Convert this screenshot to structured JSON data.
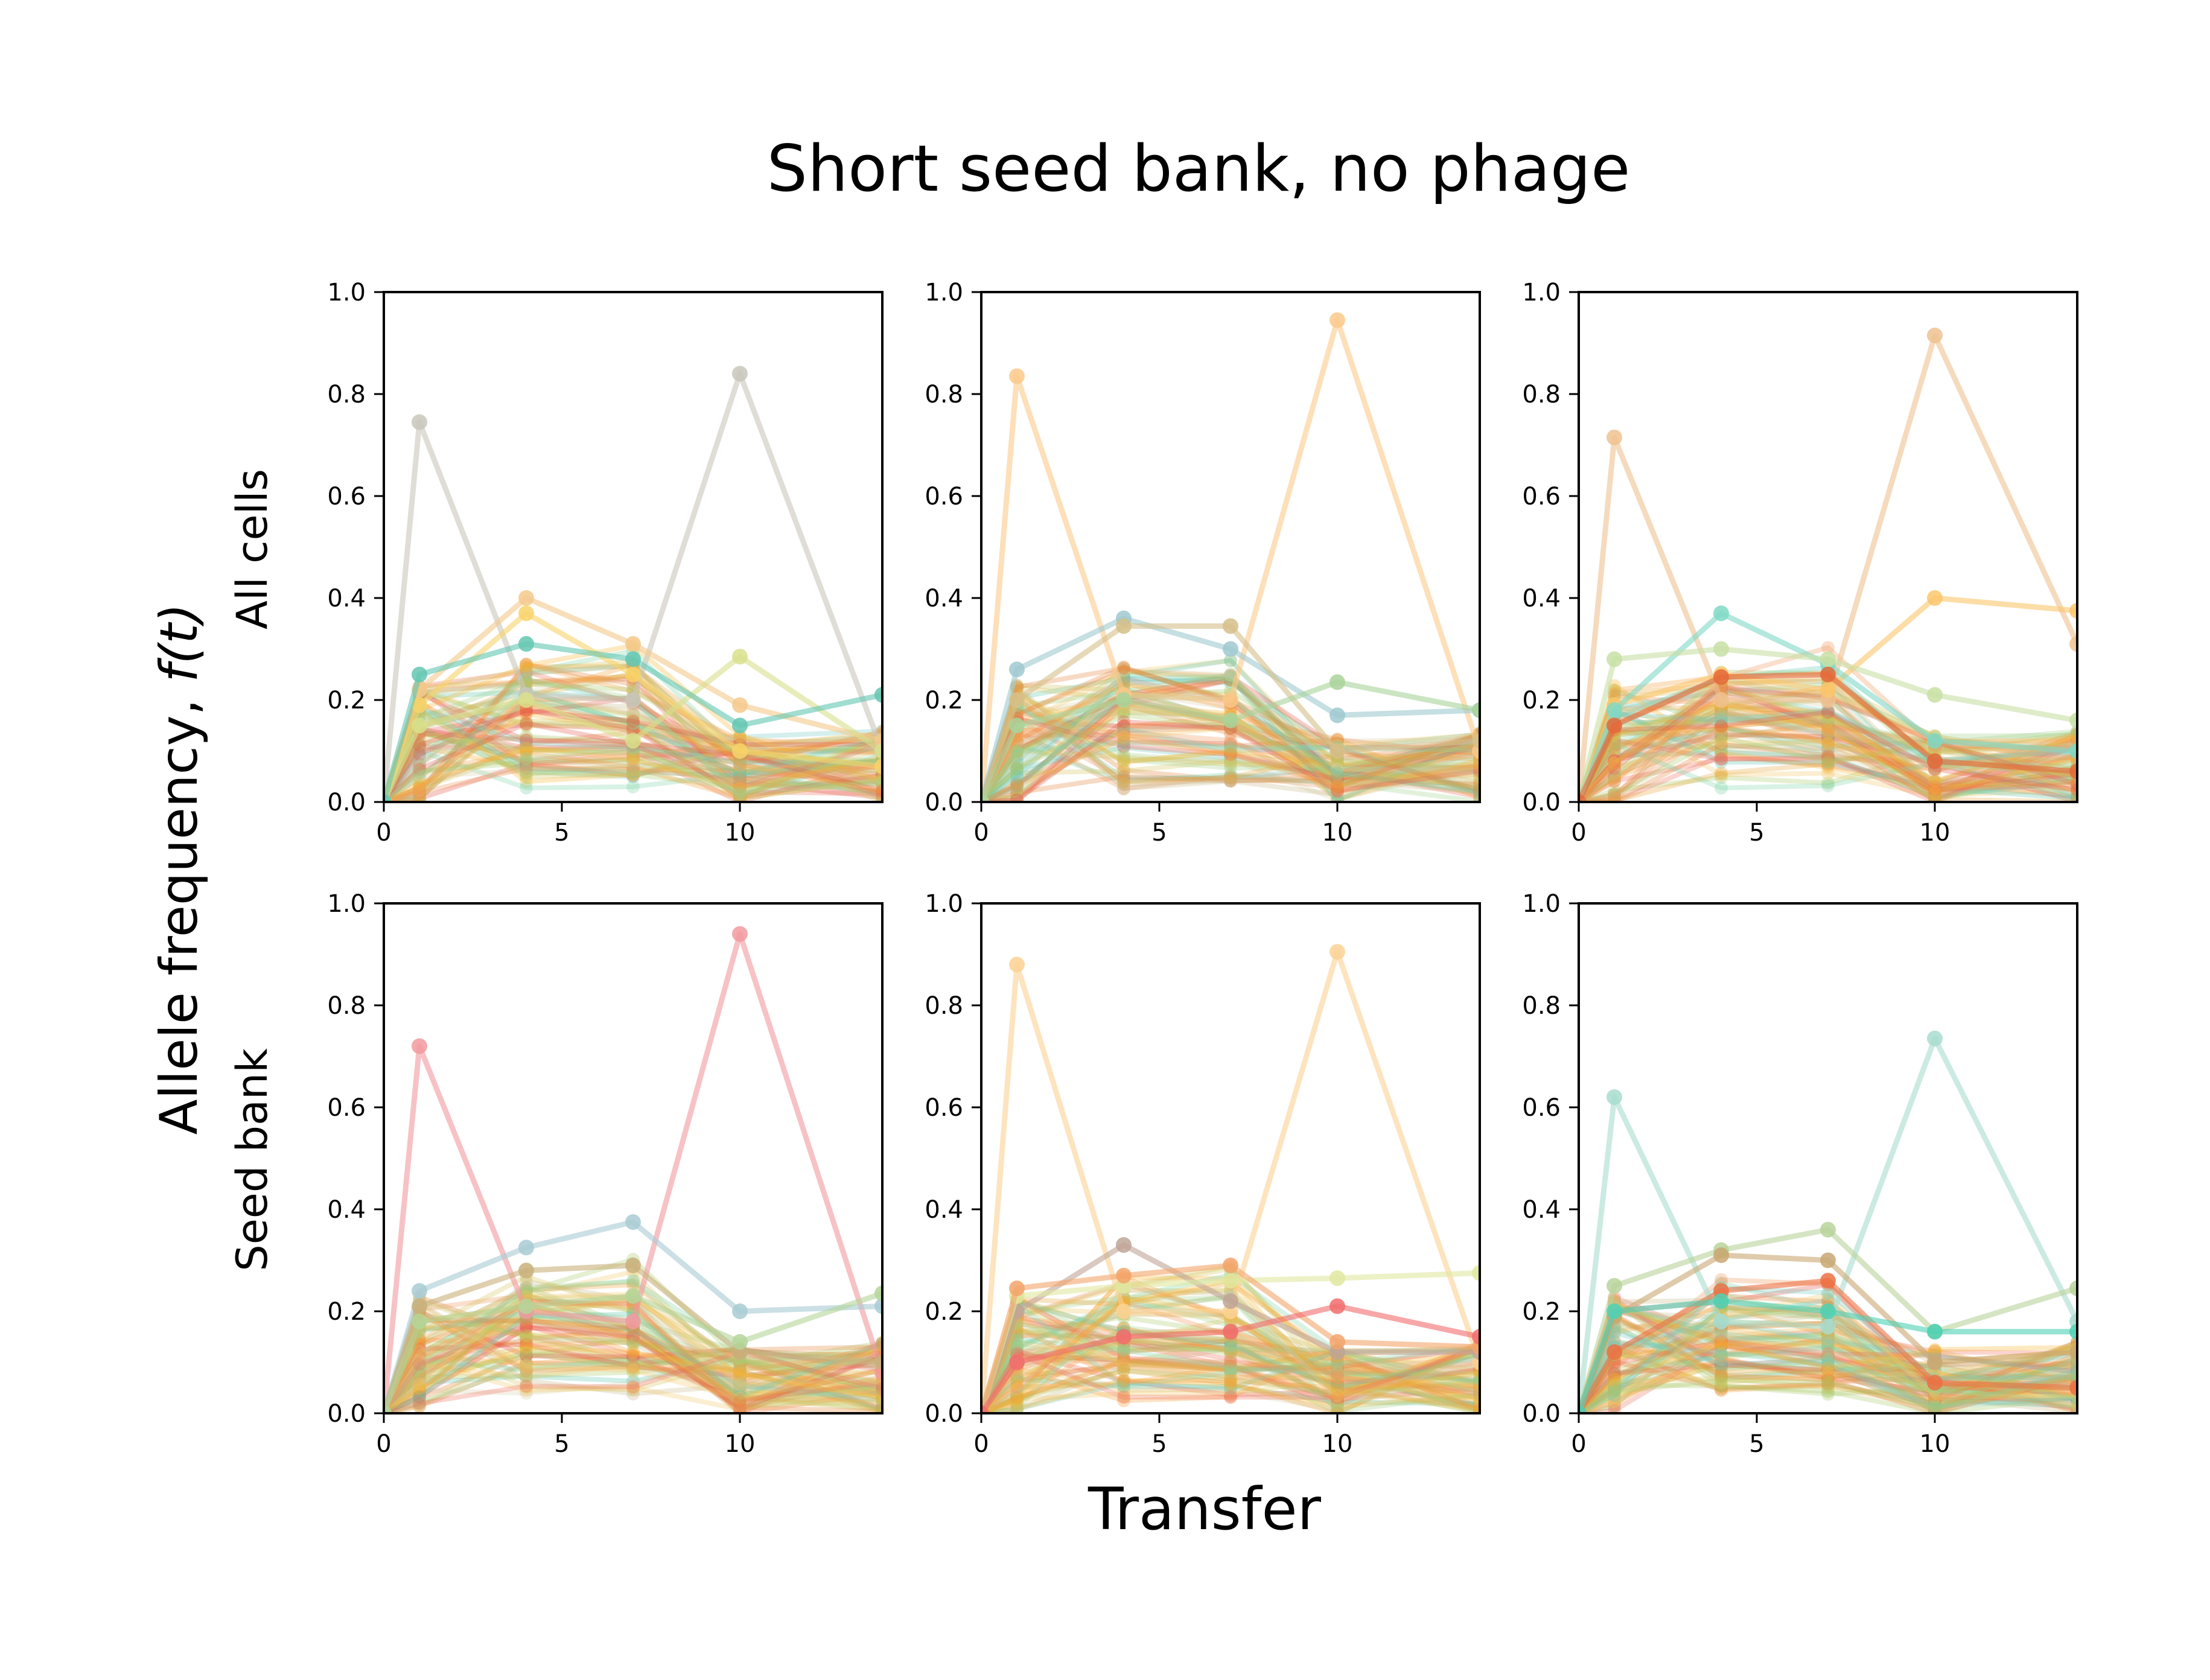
{
  "figure": {
    "title": "Short seed bank, no phage",
    "ylabel": "Allele frequency, f(t)",
    "ylabel_text": "Allele frequency, ",
    "ylabel_math": "f(t)",
    "xlabel": "Transfer",
    "row_labels": [
      "All cells",
      "Seed bank"
    ]
  },
  "chart_data": [
    {
      "type": "line",
      "panel": "row 1, col 1",
      "x": [
        0,
        1,
        4,
        7,
        10,
        14
      ],
      "xticks": [
        "0",
        "5",
        "10"
      ],
      "xlim": [
        0,
        14
      ],
      "yticks": [
        "0.0",
        "0.2",
        "0.4",
        "0.6",
        "0.8",
        "1.0"
      ],
      "ylim": [
        0,
        1
      ],
      "highlighted_series": [
        {
          "color": "#c9c7bb",
          "values": [
            0,
            0.745,
            0.21,
            0.2,
            0.84,
            0.1
          ]
        },
        {
          "color": "#f4c98c",
          "values": [
            0,
            0.22,
            0.4,
            0.31,
            0.19,
            0.12
          ]
        },
        {
          "color": "#f8d46a",
          "values": [
            0,
            0.19,
            0.37,
            0.25,
            0.1,
            0.07
          ]
        },
        {
          "color": "#d9e08c",
          "values": [
            0,
            0.15,
            0.2,
            0.12,
            0.285,
            0.1
          ]
        },
        {
          "color": "#63c7b2",
          "values": [
            0,
            0.25,
            0.31,
            0.28,
            0.15,
            0.21
          ]
        }
      ]
    },
    {
      "type": "line",
      "panel": "row 1, col 2",
      "x": [
        0,
        1,
        4,
        7,
        10,
        14
      ],
      "xticks": [
        "0",
        "5",
        "10"
      ],
      "xlim": [
        0,
        14
      ],
      "yticks": [
        "0.0",
        "0.2",
        "0.4",
        "0.6",
        "0.8",
        "1.0"
      ],
      "ylim": [
        0,
        1
      ],
      "highlighted_series": [
        {
          "color": "#fcc98a",
          "values": [
            0,
            0.835,
            0.21,
            0.2,
            0.945,
            0.1
          ]
        },
        {
          "color": "#9fc9cf",
          "values": [
            0,
            0.26,
            0.36,
            0.3,
            0.17,
            0.18
          ]
        },
        {
          "color": "#d6c08a",
          "values": [
            0,
            0.2,
            0.345,
            0.345,
            0.1,
            0.12
          ]
        },
        {
          "color": "#a9d39a",
          "values": [
            0,
            0.15,
            0.2,
            0.16,
            0.235,
            0.18
          ]
        }
      ]
    },
    {
      "type": "line",
      "panel": "row 1, col 3",
      "x": [
        0,
        1,
        4,
        7,
        10,
        14
      ],
      "xticks": [
        "0",
        "5",
        "10"
      ],
      "xlim": [
        0,
        14
      ],
      "yticks": [
        "0.0",
        "0.2",
        "0.4",
        "0.6",
        "0.8",
        "1.0"
      ],
      "ylim": [
        0,
        1
      ],
      "highlighted_series": [
        {
          "color": "#efc291",
          "values": [
            0,
            0.715,
            0.2,
            0.2,
            0.915,
            0.31
          ]
        },
        {
          "color": "#fcc76c",
          "values": [
            0,
            0.19,
            0.25,
            0.22,
            0.4,
            0.375
          ]
        },
        {
          "color": "#7fd9c6",
          "values": [
            0,
            0.18,
            0.37,
            0.27,
            0.12,
            0.1
          ]
        },
        {
          "color": "#c8e0a5",
          "values": [
            0,
            0.28,
            0.3,
            0.28,
            0.21,
            0.16
          ]
        },
        {
          "color": "#e4683a",
          "values": [
            0,
            0.15,
            0.245,
            0.25,
            0.08,
            0.06
          ]
        }
      ]
    },
    {
      "type": "line",
      "panel": "row 2, col 1",
      "x": [
        0,
        1,
        4,
        7,
        10,
        14
      ],
      "xticks": [
        "0",
        "5",
        "10"
      ],
      "xlim": [
        0,
        14
      ],
      "yticks": [
        "0.0",
        "0.2",
        "0.4",
        "0.6",
        "0.8",
        "1.0"
      ],
      "ylim": [
        0,
        1
      ],
      "highlighted_series": [
        {
          "color": "#f29a9f",
          "values": [
            0,
            0.72,
            0.2,
            0.18,
            0.94,
            0.08
          ]
        },
        {
          "color": "#a9cbd3",
          "values": [
            0,
            0.24,
            0.325,
            0.375,
            0.2,
            0.21
          ]
        },
        {
          "color": "#c9b07c",
          "values": [
            0,
            0.21,
            0.28,
            0.29,
            0.12,
            0.1
          ]
        },
        {
          "color": "#b4d69a",
          "values": [
            0,
            0.18,
            0.21,
            0.23,
            0.14,
            0.235
          ]
        }
      ]
    },
    {
      "type": "line",
      "panel": "row 2, col 2",
      "x": [
        0,
        1,
        4,
        7,
        10,
        14
      ],
      "xticks": [
        "0",
        "5",
        "10"
      ],
      "xlim": [
        0,
        14
      ],
      "yticks": [
        "0.0",
        "0.2",
        "0.4",
        "0.6",
        "0.8",
        "1.0"
      ],
      "ylim": [
        0,
        1
      ],
      "highlighted_series": [
        {
          "color": "#fcd294",
          "values": [
            0,
            0.88,
            0.2,
            0.2,
            0.905,
            0.1
          ]
        },
        {
          "color": "#c0a597",
          "values": [
            0,
            0.2,
            0.33,
            0.22,
            0.12,
            0.12
          ]
        },
        {
          "color": "#e1e7a0",
          "values": [
            0,
            0.23,
            0.25,
            0.26,
            0.265,
            0.275
          ]
        },
        {
          "color": "#f3a56b",
          "values": [
            0,
            0.245,
            0.27,
            0.29,
            0.14,
            0.13
          ]
        },
        {
          "color": "#f16d6d",
          "values": [
            0,
            0.1,
            0.15,
            0.16,
            0.21,
            0.15
          ]
        }
      ]
    },
    {
      "type": "line",
      "panel": "row 2, col 3",
      "x": [
        0,
        1,
        4,
        7,
        10,
        14
      ],
      "xticks": [
        "0",
        "5",
        "10"
      ],
      "xlim": [
        0,
        14
      ],
      "yticks": [
        "0.0",
        "0.2",
        "0.4",
        "0.6",
        "0.8",
        "1.0"
      ],
      "ylim": [
        0,
        1
      ],
      "highlighted_series": [
        {
          "color": "#a8dccf",
          "values": [
            0,
            0.62,
            0.18,
            0.17,
            0.735,
            0.18
          ]
        },
        {
          "color": "#b9d49b",
          "values": [
            0,
            0.25,
            0.32,
            0.36,
            0.16,
            0.245
          ]
        },
        {
          "color": "#c9a873",
          "values": [
            0,
            0.19,
            0.31,
            0.3,
            0.1,
            0.12
          ]
        },
        {
          "color": "#ec7143",
          "values": [
            0,
            0.12,
            0.24,
            0.26,
            0.06,
            0.05
          ]
        },
        {
          "color": "#4fd1b4",
          "values": [
            0,
            0.2,
            0.22,
            0.2,
            0.16,
            0.16
          ]
        }
      ]
    }
  ],
  "palette": {
    "background_series": [
      "#ef6f5e",
      "#f5a03a",
      "#f7b733",
      "#e9a53b",
      "#7fd3a8",
      "#5ec8b0",
      "#a9c96b",
      "#d4c25c",
      "#f2c766",
      "#e6863a",
      "#9ed18b",
      "#c8b98c",
      "#f0955a",
      "#6fc9c4",
      "#e5574a",
      "#d9d0b0"
    ]
  }
}
